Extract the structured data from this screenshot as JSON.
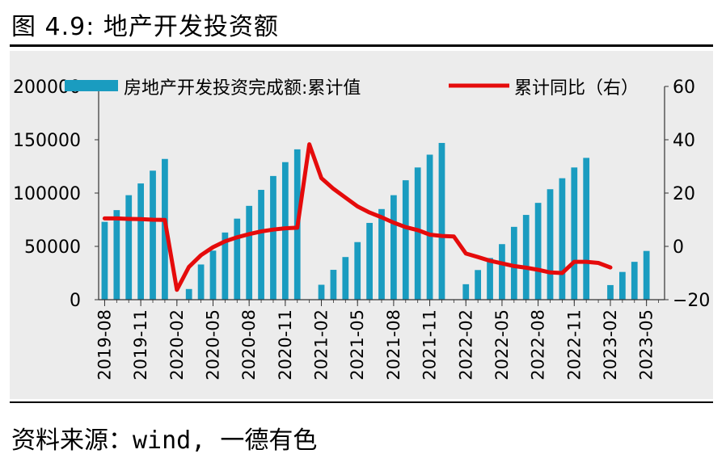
{
  "figure_title": "图 4.9: 地产开发投资额",
  "source_note": "资料来源：wind, 一德有色",
  "colors": {
    "bar": "#1a9cc0",
    "line": "#e50b0b",
    "panel": "#ececec",
    "axis": "#333333"
  },
  "chart_data": {
    "type": "bar",
    "title": "",
    "legend_position": "top",
    "grid": false,
    "x_tick_labels": [
      "2019-08",
      "2019-11",
      "2020-02",
      "2020-05",
      "2020-08",
      "2020-11",
      "2021-02",
      "2021-05",
      "2021-08",
      "2021-11",
      "2022-02",
      "2022-05",
      "2022-08",
      "2022-11",
      "2023-02",
      "2023-05"
    ],
    "categories": [
      "2019-08",
      "2019-09",
      "2019-10",
      "2019-11",
      "2019-12",
      "2020-01",
      "2020-02",
      "2020-03",
      "2020-04",
      "2020-05",
      "2020-06",
      "2020-07",
      "2020-08",
      "2020-09",
      "2020-10",
      "2020-11",
      "2020-12",
      "2021-01",
      "2021-02",
      "2021-03",
      "2021-04",
      "2021-05",
      "2021-06",
      "2021-07",
      "2021-08",
      "2021-09",
      "2021-10",
      "2021-11",
      "2021-12",
      "2022-01",
      "2022-02",
      "2022-03",
      "2022-04",
      "2022-05",
      "2022-06",
      "2022-07",
      "2022-08",
      "2022-09",
      "2022-10",
      "2022-11",
      "2022-12",
      "2023-01",
      "2023-02",
      "2023-03",
      "2023-04",
      "2023-05",
      "2023-06"
    ],
    "y_left": {
      "ylim": [
        0,
        200000
      ],
      "ticks": [
        0,
        50000,
        100000,
        150000,
        200000
      ],
      "tick_labels": [
        "0",
        "50000",
        "100000",
        "150000",
        "200000"
      ]
    },
    "y_right": {
      "ylim": [
        -20,
        60
      ],
      "ticks": [
        -20,
        0,
        20,
        40,
        60
      ],
      "tick_labels": [
        "−20",
        "0",
        "20",
        "40",
        "60"
      ]
    },
    "series": [
      {
        "name": "房地产开发投资完成额:累计值",
        "type": "bar",
        "axis": "left",
        "values": [
          73000,
          84000,
          98000,
          109000,
          121000,
          132000,
          null,
          10000,
          33000,
          46000,
          63000,
          76000,
          88000,
          103000,
          116000,
          129000,
          141000,
          null,
          14000,
          28000,
          40000,
          54000,
          72000,
          85000,
          98000,
          112000,
          124000,
          136000,
          147000,
          null,
          14500,
          27800,
          39100,
          52100,
          68300,
          79500,
          90800,
          103600,
          113900,
          124000,
          133000,
          null,
          13700,
          26000,
          35500,
          45700,
          null
        ]
      },
      {
        "name": "累计同比（右）",
        "type": "line",
        "axis": "right",
        "values": [
          10.5,
          10.5,
          10.3,
          10.2,
          10.0,
          9.9,
          -16.3,
          -7.7,
          -3.3,
          -0.3,
          1.9,
          3.4,
          4.6,
          5.6,
          6.3,
          6.8,
          7.0,
          38.3,
          25.6,
          21.6,
          18.3,
          15.0,
          12.7,
          10.9,
          8.9,
          7.2,
          6.1,
          4.4,
          3.9,
          3.7,
          -2.7,
          -4.0,
          -5.4,
          -6.4,
          -7.4,
          -8.0,
          -8.8,
          -9.8,
          -10.0,
          -5.8,
          -5.8,
          -6.2,
          -7.9,
          null,
          null,
          null,
          null
        ]
      }
    ]
  }
}
